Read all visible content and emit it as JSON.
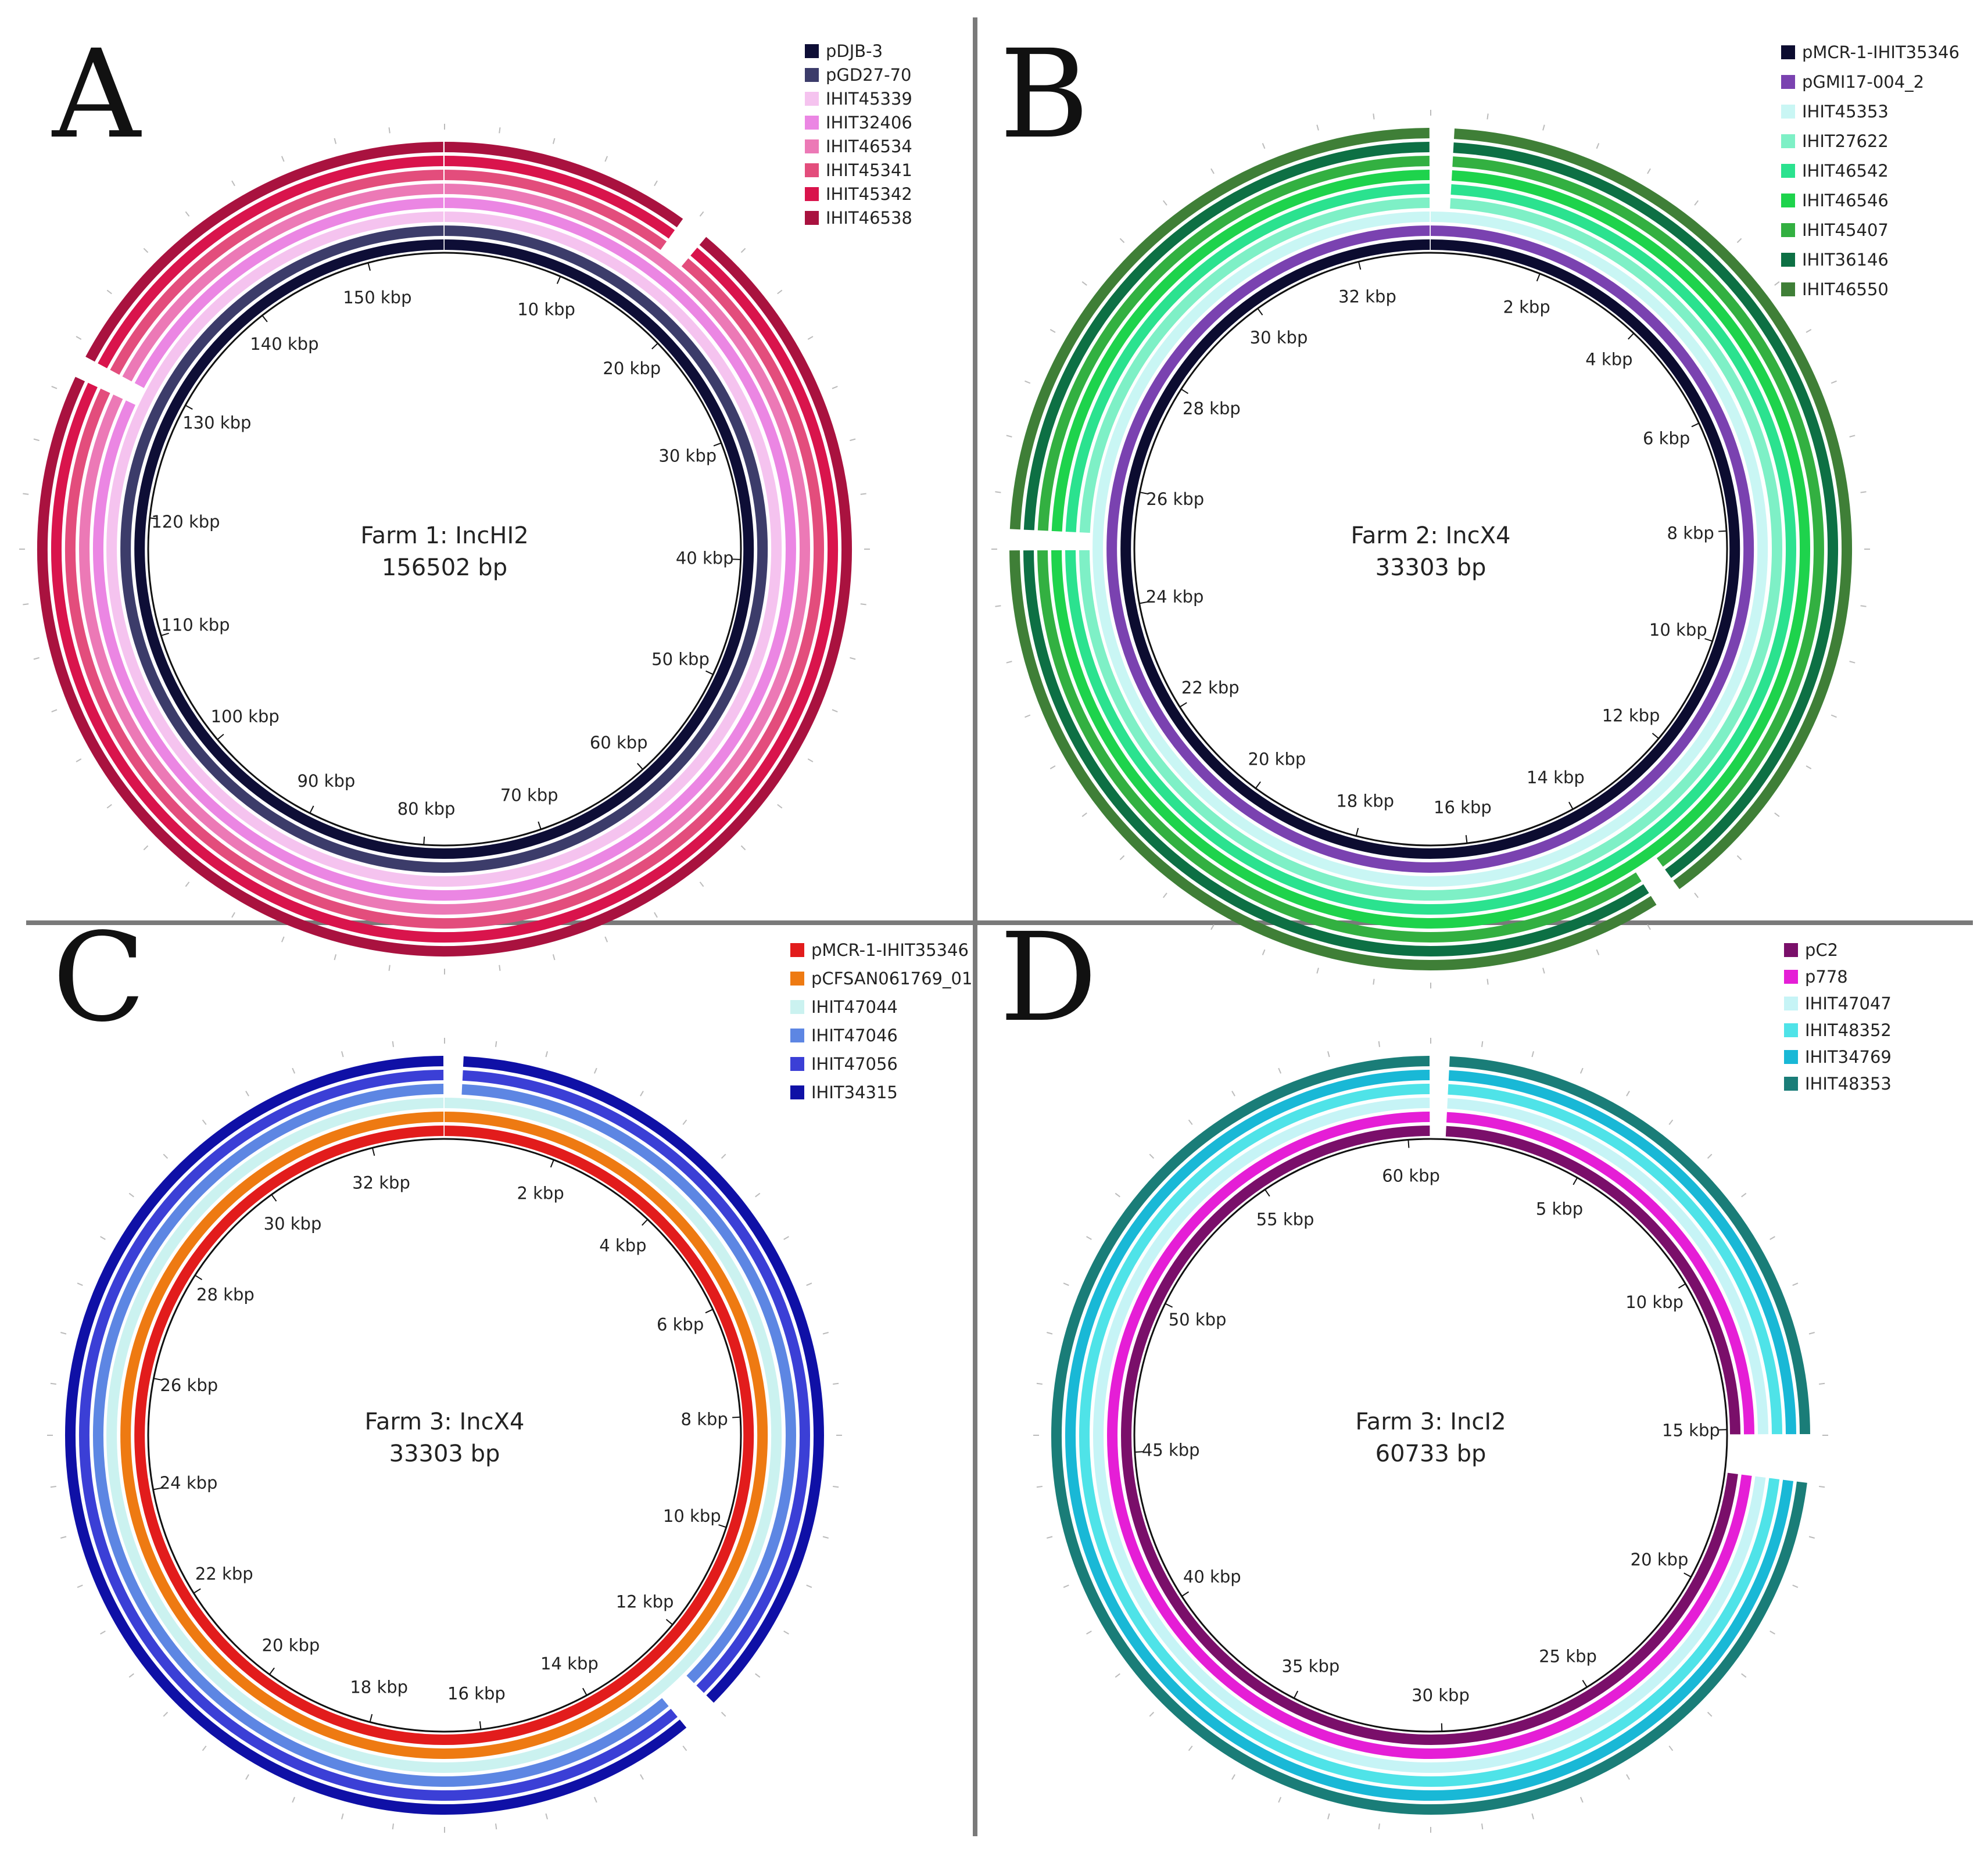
{
  "figure": {
    "panels": [
      {
        "letter": "A",
        "title": "Farm 1: IncHI2",
        "size_label": "156502 bp",
        "ticks": [
          "10 kbp",
          "20 kbp",
          "30 kbp",
          "40 kbp",
          "50 kbp",
          "60 kbp",
          "70 kbp",
          "80 kbp",
          "90 kbp",
          "100 kbp",
          "110 kbp",
          "120 kbp",
          "130 kbp",
          "140 kbp",
          "150 kbp"
        ],
        "tick_values_kbp": [
          10,
          20,
          30,
          40,
          50,
          60,
          70,
          80,
          90,
          100,
          110,
          120,
          130,
          140,
          150
        ],
        "total_kbp": 156.502,
        "rings": [
          {
            "name": "pDJB-3",
            "color": "#0e0e36"
          },
          {
            "name": "pGD27-70",
            "color": "#3c3c6a"
          },
          {
            "name": "IHIT45339",
            "color": "#f5c3ef"
          },
          {
            "name": "IHIT32406",
            "color": "#eb86e3"
          },
          {
            "name": "IHIT46534",
            "color": "#ec79b6"
          },
          {
            "name": "IHIT45341",
            "color": "#e34d7c"
          },
          {
            "name": "IHIT45342",
            "color": "#d9144c"
          },
          {
            "name": "IHIT46538",
            "color": "#a9123f"
          }
        ]
      },
      {
        "letter": "B",
        "title": "Farm 2: IncX4",
        "size_label": "33303 bp",
        "ticks": [
          "2 kbp",
          "4 kbp",
          "6 kbp",
          "8 kbp",
          "10 kbp",
          "12 kbp",
          "14 kbp",
          "16 kbp",
          "18 kbp",
          "20 kbp",
          "22 kbp",
          "24 kbp",
          "26 kbp",
          "28 kbp",
          "30 kbp",
          "32 kbp"
        ],
        "tick_values_kbp": [
          2,
          4,
          6,
          8,
          10,
          12,
          14,
          16,
          18,
          20,
          22,
          24,
          26,
          28,
          30,
          32
        ],
        "total_kbp": 33.303,
        "rings": [
          {
            "name": "pMCR-1-IHIT35346",
            "color": "#0c0c30"
          },
          {
            "name": "pGMI17-004_2",
            "color": "#7a42b0"
          },
          {
            "name": "IHIT45353",
            "color": "#c9f6f4"
          },
          {
            "name": "IHIT27622",
            "color": "#7ef0c6"
          },
          {
            "name": "IHIT46542",
            "color": "#2be28f"
          },
          {
            "name": "IHIT46546",
            "color": "#1ed34c"
          },
          {
            "name": "IHIT45407",
            "color": "#33b041"
          },
          {
            "name": "IHIT36146",
            "color": "#0d7044"
          },
          {
            "name": "IHIT46550",
            "color": "#3f7f37"
          }
        ]
      },
      {
        "letter": "C",
        "title": "Farm 3: IncX4",
        "size_label": "33303 bp",
        "ticks": [
          "2 kbp",
          "4 kbp",
          "6 kbp",
          "8 kbp",
          "10 kbp",
          "12 kbp",
          "14 kbp",
          "16 kbp",
          "18 kbp",
          "20 kbp",
          "22 kbp",
          "24 kbp",
          "26 kbp",
          "28 kbp",
          "30 kbp",
          "32 kbp"
        ],
        "tick_values_kbp": [
          2,
          4,
          6,
          8,
          10,
          12,
          14,
          16,
          18,
          20,
          22,
          24,
          26,
          28,
          30,
          32
        ],
        "total_kbp": 33.303,
        "rings": [
          {
            "name": "pMCR-1-IHIT35346",
            "color": "#e21c1c"
          },
          {
            "name": "pCFSAN061769_01",
            "color": "#ee7a12"
          },
          {
            "name": "IHIT47044",
            "color": "#cbf2f0"
          },
          {
            "name": "IHIT47046",
            "color": "#5d86e3"
          },
          {
            "name": "IHIT47056",
            "color": "#3b3fd6"
          },
          {
            "name": "IHIT34315",
            "color": "#0f10a6"
          }
        ]
      },
      {
        "letter": "D",
        "title": "Farm 3: IncI2",
        "size_label": "60733 bp",
        "ticks": [
          "5 kbp",
          "10 kbp",
          "15 kbp",
          "20 kbp",
          "25 kbp",
          "30 kbp",
          "35 kbp",
          "40 kbp",
          "45 kbp",
          "50 kbp",
          "55 kbp",
          "60 kbp"
        ],
        "tick_values_kbp": [
          5,
          10,
          15,
          20,
          25,
          30,
          35,
          40,
          45,
          50,
          55,
          60
        ],
        "total_kbp": 60.733,
        "rings": [
          {
            "name": "pC2",
            "color": "#7a0f6a"
          },
          {
            "name": "p778",
            "color": "#e51ed6"
          },
          {
            "name": "IHIT47047",
            "color": "#c6f4f6"
          },
          {
            "name": "IHIT48352",
            "color": "#4fe3e8"
          },
          {
            "name": "IHIT34769",
            "color": "#19b8d6"
          },
          {
            "name": "IHIT48353",
            "color": "#1a7d78"
          }
        ]
      }
    ]
  }
}
